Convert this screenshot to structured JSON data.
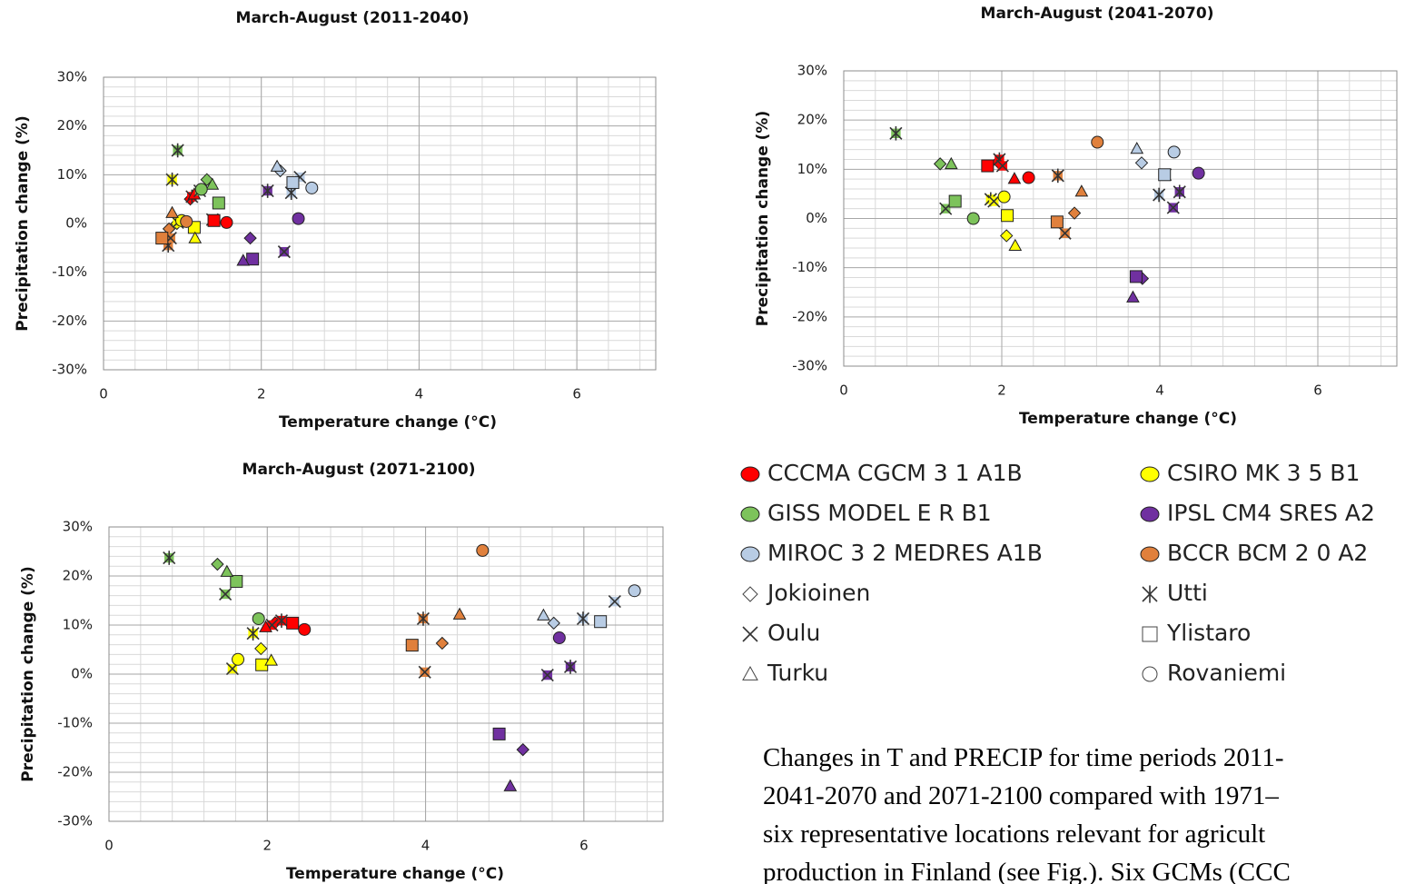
{
  "chart_data": [
    {
      "type": "scatter",
      "title": "March-August (2011-2040)",
      "xlabel": "Temperature change (°C)",
      "ylabel": "Precipitation change (%)",
      "xlim": [
        0,
        7
      ],
      "ylim": [
        -30,
        30
      ],
      "xticks": [
        0,
        2,
        4,
        6
      ],
      "yticks": [
        {
          "value": -30,
          "label": "-30%"
        },
        {
          "value": -20,
          "label": "-20%"
        },
        {
          "value": -10,
          "label": "-10%"
        },
        {
          "value": 0,
          "label": "0%"
        },
        {
          "value": 10,
          "label": "10%"
        },
        {
          "value": 20,
          "label": "20%"
        },
        {
          "value": 30,
          "label": "30%"
        }
      ],
      "grid": true,
      "series": [
        {
          "x": [
            1.1,
            1.12,
            1.38,
            1.4,
            1.15,
            1.56
          ],
          "values": [
            5,
            5.5,
            0.8,
            0.6,
            6,
            0.2
          ]
        },
        {
          "x": [
            0.93,
            0.87,
            0.94,
            1.15,
            1.16,
            0.99
          ],
          "values": [
            0,
            9,
            0.2,
            -0.8,
            -3,
            0.6
          ]
        },
        {
          "x": [
            1.31,
            0.94,
            1.22,
            1.46,
            1.38,
            1.24
          ],
          "values": [
            9,
            15,
            6.7,
            4.2,
            8,
            7
          ]
        },
        {
          "x": [
            1.86,
            2.08,
            2.29,
            1.89,
            1.77,
            2.47
          ],
          "values": [
            -3,
            6.7,
            -5.8,
            -7.3,
            -7.6,
            1
          ]
        },
        {
          "x": [
            2.24,
            2.38,
            2.49,
            2.4,
            2.2,
            2.64
          ],
          "values": [
            10.8,
            6.3,
            9.5,
            8.4,
            11.7,
            7.3
          ]
        },
        {
          "x": [
            0.83,
            0.82,
            0.85,
            0.74,
            0.87,
            1.05
          ],
          "values": [
            -1.1,
            -4.5,
            -3,
            -3,
            2.2,
            0.4
          ]
        }
      ]
    },
    {
      "type": "scatter",
      "title": "March-August (2041-2070)",
      "xlabel": "Temperature change (°C)",
      "ylabel": "Precipitation change (%)",
      "xlim": [
        0,
        7
      ],
      "ylim": [
        -30,
        30
      ],
      "xticks": [
        0,
        2,
        4,
        6
      ],
      "yticks": [
        {
          "value": -30,
          "label": "-30%"
        },
        {
          "value": -20,
          "label": "-20%"
        },
        {
          "value": -10,
          "label": "-10%"
        },
        {
          "value": 0,
          "label": "0%"
        },
        {
          "value": 10,
          "label": "10%"
        },
        {
          "value": 20,
          "label": "20%"
        },
        {
          "value": 30,
          "label": "30%"
        }
      ],
      "grid": true,
      "series": [
        {
          "x": [
            1.95,
            1.97,
            2.01,
            1.82,
            2.16,
            2.34
          ],
          "values": [
            11.5,
            12,
            10.7,
            10.7,
            8.1,
            8.3
          ]
        },
        {
          "x": [
            2.06,
            1.86,
            1.9,
            2.07,
            2.17,
            2.03
          ],
          "values": [
            -3.5,
            3.9,
            3.5,
            0.6,
            -5.5,
            4.4
          ]
        },
        {
          "x": [
            1.22,
            0.66,
            1.29,
            1.41,
            1.36,
            1.64
          ],
          "values": [
            11.1,
            17.3,
            2,
            3.5,
            11.1,
            0
          ]
        },
        {
          "x": [
            3.78,
            4.25,
            4.17,
            3.7,
            3.66,
            4.49
          ],
          "values": [
            -12.2,
            5.4,
            2.2,
            -11.8,
            -16,
            9.2
          ]
        },
        {
          "x": [
            3.77,
            3.99,
            4.07,
            4.06,
            3.71,
            4.18
          ],
          "values": [
            11.3,
            4.8,
            8.9,
            8.9,
            14.2,
            13.5
          ]
        },
        {
          "x": [
            2.92,
            2.71,
            2.8,
            2.7,
            3.01,
            3.21
          ],
          "values": [
            1.1,
            8.7,
            -3,
            -0.7,
            5.5,
            15.5
          ]
        }
      ]
    },
    {
      "type": "scatter",
      "title": "March-August (2071-2100)",
      "xlabel": "Temperature change (°C)",
      "ylabel": "Precipitation change (%)",
      "xlim": [
        0,
        7
      ],
      "ylim": [
        -30,
        30
      ],
      "xticks": [
        0,
        2,
        4,
        6
      ],
      "yticks": [
        {
          "value": -30,
          "label": "-30%"
        },
        {
          "value": -20,
          "label": "-20%"
        },
        {
          "value": -10,
          "label": "-10%"
        },
        {
          "value": 0,
          "label": "0%"
        },
        {
          "value": 10,
          "label": "10%"
        },
        {
          "value": 20,
          "label": "20%"
        },
        {
          "value": 30,
          "label": "30%"
        }
      ],
      "grid": true,
      "series": [
        {
          "x": [
            2.1,
            2.18,
            2.06,
            2.32,
            1.98,
            2.47
          ],
          "values": [
            10.5,
            10.9,
            10,
            10.4,
            9.6,
            9.1
          ]
        },
        {
          "x": [
            1.92,
            1.82,
            1.56,
            1.93,
            2.05,
            1.63
          ],
          "values": [
            5.2,
            8.3,
            1.1,
            1.9,
            2.8,
            3
          ]
        },
        {
          "x": [
            1.37,
            0.76,
            1.47,
            1.61,
            1.49,
            1.89
          ],
          "values": [
            22.4,
            23.7,
            16.3,
            18.9,
            20.9,
            11.3
          ]
        },
        {
          "x": [
            5.23,
            5.83,
            5.54,
            4.93,
            5.07,
            5.69
          ],
          "values": [
            -15.4,
            1.5,
            -0.2,
            -12.2,
            -22.8,
            7.4
          ]
        },
        {
          "x": [
            5.62,
            5.99,
            6.39,
            6.21,
            5.49,
            6.64
          ],
          "values": [
            10.4,
            11.3,
            14.8,
            10.7,
            12,
            17
          ]
        },
        {
          "x": [
            4.21,
            3.97,
            3.99,
            3.83,
            4.43,
            4.72
          ],
          "values": [
            6.3,
            11.3,
            0.4,
            5.9,
            12.2,
            25.2
          ]
        }
      ]
    }
  ],
  "legend": {
    "models": [
      {
        "name": "CCCMA CGCM 3 1 A1B",
        "color": "#ff0000"
      },
      {
        "name": "CSIRO MK 3 5 B1",
        "color": "#ffff00"
      },
      {
        "name": "GISS MODEL E R B1",
        "color": "#7dc35b"
      },
      {
        "name": "IPSL CM4 SRES A2",
        "color": "#7030a0"
      },
      {
        "name": "MIROC 3 2 MEDRES A1B",
        "color": "#b8cce4"
      },
      {
        "name": "BCCR BCM 2 0 A2",
        "color": "#e0803c"
      }
    ],
    "locations": [
      {
        "name": "Jokioinen",
        "marker": "diamond"
      },
      {
        "name": "Utti",
        "marker": "asterisk"
      },
      {
        "name": "Oulu",
        "marker": "x"
      },
      {
        "name": "Ylistaro",
        "marker": "square"
      },
      {
        "name": "Turku",
        "marker": "triangle"
      },
      {
        "name": "Rovaniemi",
        "marker": "circle"
      }
    ]
  },
  "caption": [
    "Changes in T and PRECIP for time periods 2011-",
    "2041-2070 and 2071-2100 compared with 1971–",
    "six representative  locations  relevant for agricult",
    "production in Finland (see Fig.). Six GCMs (CCC"
  ]
}
